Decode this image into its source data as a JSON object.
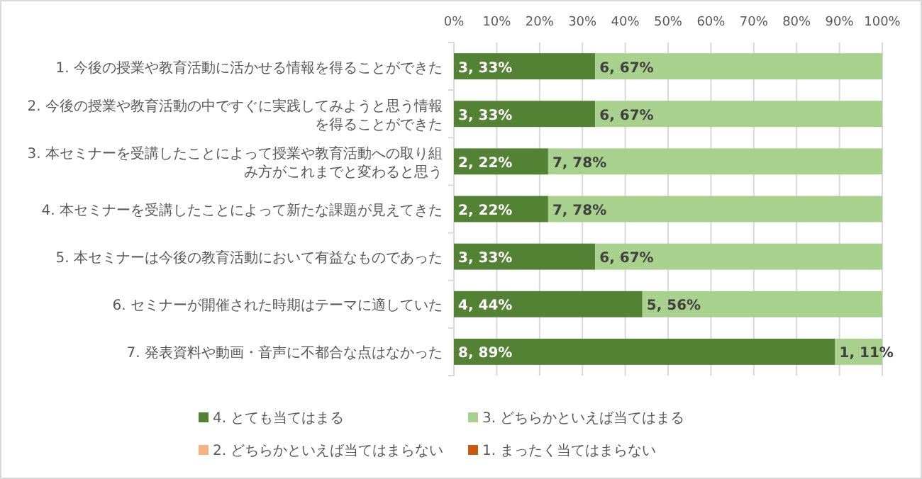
{
  "chart_data": {
    "type": "bar",
    "orientation": "horizontal",
    "stacked": true,
    "grid": "x",
    "legend": "bottom",
    "categories": [
      "1. 今後の授業や教育活動に活かせる情報を得ることができた",
      "2. 今後の授業や教育活動の中ですぐに実践してみようと思う情報を得ることができた",
      "3. 本セミナーを受講したことによって授業や教育活動への取り組み方がこれまでと変わると思う",
      "4. 本セミナーを受講したことによって新たな課題が見えてきた",
      "5. 本セミナーは今後の教育活動において有益なものであった",
      "6. セミナーが開催された時期はテーマに適していた",
      "7. 発表資料や動画・音声に不都合な点はなかった"
    ],
    "xlim": [
      0,
      100
    ],
    "xticks": [
      {
        "value": 0,
        "label": "0%"
      },
      {
        "value": 10,
        "label": "10%"
      },
      {
        "value": 20,
        "label": "20%"
      },
      {
        "value": 30,
        "label": "30%"
      },
      {
        "value": 40,
        "label": "40%"
      },
      {
        "value": 50,
        "label": "50%"
      },
      {
        "value": 60,
        "label": "60%"
      },
      {
        "value": 70,
        "label": "70%"
      },
      {
        "value": 80,
        "label": "80%"
      },
      {
        "value": 90,
        "label": "90%"
      },
      {
        "value": 100,
        "label": "100%"
      }
    ],
    "series": [
      {
        "name": "4. とても当てはまる",
        "color": "#548235",
        "values": [
          33,
          33,
          22,
          22,
          33,
          44,
          89
        ],
        "value_labels": [
          "3, 33%",
          "3, 33%",
          "2, 22%",
          "2, 22%",
          "3, 33%",
          "4, 44%",
          "8, 89%"
        ]
      },
      {
        "name": "3. どちらかといえば当てはまる",
        "color": "#a9d18e",
        "values": [
          67,
          67,
          78,
          78,
          67,
          56,
          11
        ],
        "value_labels": [
          "6, 67%",
          "6, 67%",
          "7, 78%",
          "7, 78%",
          "6, 67%",
          "5, 56%",
          "1, 11%"
        ]
      },
      {
        "name": "2. どちらかといえば当てはまらない",
        "color": "#f4b183",
        "values": [
          0,
          0,
          0,
          0,
          0,
          0,
          0
        ]
      },
      {
        "name": "1. まったく当てはまらない",
        "color": "#c55a11",
        "values": [
          0,
          0,
          0,
          0,
          0,
          0,
          0
        ]
      }
    ]
  }
}
